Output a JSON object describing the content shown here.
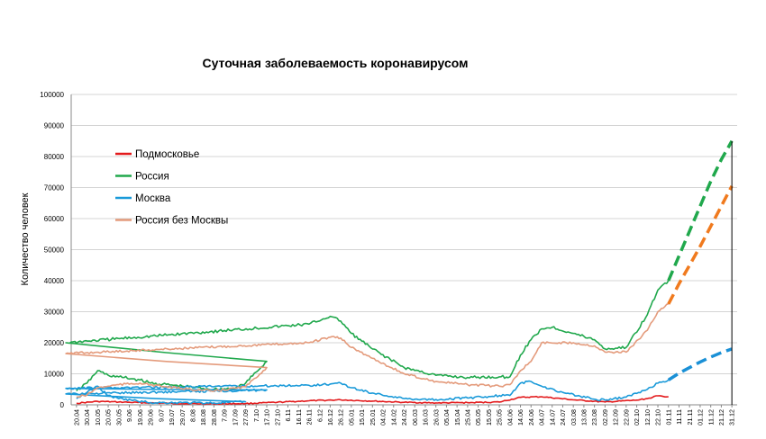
{
  "chart_data": {
    "type": "line",
    "title": "Суточная заболеваемость коронавирусом",
    "xlabel": "",
    "ylabel": "Количество человек",
    "ylim": [
      0,
      100000
    ],
    "yticks": [
      "0",
      "10000",
      "20000",
      "30000",
      "40000",
      "50000",
      "60000",
      "70000",
      "80000",
      "90000",
      "100000"
    ],
    "grid": true,
    "legend_position": "top-left",
    "categories": [
      "20.04",
      "30.04",
      "10.05",
      "20.05",
      "30.05",
      "9.06",
      "19.06",
      "29.06",
      "9.07",
      "19.07",
      "29.07",
      "8.08",
      "18.08",
      "28.08",
      "7.09",
      "17.09",
      "27.09",
      "7.10",
      "17.10",
      "27.10",
      "6.11",
      "16.11",
      "26.11",
      "6.12",
      "16.12",
      "26.12",
      "05.01",
      "15.01",
      "25.01",
      "04.02",
      "14.02",
      "24.02",
      "06.03",
      "16.03",
      "26.03",
      "05.04",
      "15.04",
      "25.04",
      "05.05",
      "15.05",
      "25.05",
      "04.06",
      "14.06",
      "24.06",
      "04.07",
      "14.07",
      "24.07",
      "03.08",
      "13.08",
      "23.08",
      "02.09",
      "12.09",
      "22.09",
      "02.10",
      "12.10",
      "22.10",
      "01.11",
      "11.11",
      "21.11",
      "01.12",
      "11.12",
      "21.12",
      "31.12"
    ],
    "series": [
      {
        "name": "Подмосковье",
        "color": "#e31a1c",
        "style": "solid",
        "x": [
          "20.04",
          "10.05",
          "30.05",
          "29.06",
          "29.07",
          "28.08",
          "27.09",
          "27.10",
          "26.11",
          "26.12",
          "25.01",
          "24.02",
          "26.03",
          "25.04",
          "25.05",
          "14.06",
          "04.07",
          "03.08",
          "02.09",
          "02.10",
          "12.10",
          "22.10",
          "01.11"
        ],
        "values": [
          500,
          1100,
          900,
          600,
          400,
          300,
          400,
          800,
          1300,
          1600,
          1200,
          800,
          600,
          700,
          900,
          2400,
          2600,
          1600,
          900,
          1500,
          2000,
          2900,
          2600
        ]
      },
      {
        "name": "Россия",
        "color": "#20a84c",
        "style": "solid",
        "x": [
          "20.04",
          "30.04",
          "10.05",
          "20.05",
          "30.05",
          "19.06",
          "29.06",
          "29.07",
          "28.08",
          "17.09",
          "27.09",
          "17.10",
          "06.11",
          "26.11",
          "16.12",
          "26.12",
          "05.01",
          "25.01",
          "24.02",
          "26.03",
          "25.04",
          "25.05",
          "04.06",
          "14.06",
          "24.06",
          "04.07",
          "14.07",
          "03.08",
          "23.08",
          "02.09",
          "22.09",
          "12.10",
          "22.10",
          "01.11"
        ],
        "values": [
          4500,
          7000,
          11000,
          9500,
          9000,
          8000,
          7000,
          6000,
          5000,
          5300,
          7000,
          14000,
          20000,
          26000,
          28500,
          27000,
          23000,
          18000,
          12000,
          9500,
          8800,
          9000,
          9000,
          16000,
          21000,
          24500,
          25000,
          23000,
          21000,
          18000,
          18500,
          29000,
          37000,
          40000
        ]
      },
      {
        "name": "Москва",
        "color": "#1a9ad9",
        "style": "solid",
        "x": [
          "20.04",
          "30.04",
          "10.05",
          "20.05",
          "30.05",
          "29.06",
          "29.07",
          "28.08",
          "27.09",
          "07.10",
          "17.10",
          "06.11",
          "26.11",
          "16.12",
          "26.12",
          "05.01",
          "25.01",
          "24.02",
          "26.03",
          "25.04",
          "25.05",
          "04.06",
          "14.06",
          "24.06",
          "04.07",
          "24.07",
          "23.08",
          "02.09",
          "22.09",
          "12.10",
          "22.10",
          "01.11"
        ],
        "values": [
          2000,
          4000,
          6000,
          3000,
          2000,
          700,
          700,
          600,
          1000,
          3500,
          4800,
          5300,
          6300,
          6700,
          7000,
          5500,
          3800,
          2000,
          1700,
          2200,
          3000,
          3000,
          7000,
          7500,
          6000,
          4000,
          1800,
          1500,
          2500,
          5000,
          7000,
          8000
        ]
      },
      {
        "name": "Россия без Москвы",
        "color": "#e49b7c",
        "style": "solid",
        "x": [
          "20.04",
          "30.04",
          "10.05",
          "20.05",
          "30.05",
          "19.06",
          "29.06",
          "29.07",
          "28.08",
          "27.09",
          "17.10",
          "06.11",
          "26.11",
          "16.12",
          "26.12",
          "05.01",
          "25.01",
          "24.02",
          "26.03",
          "25.04",
          "25.05",
          "04.06",
          "14.06",
          "24.06",
          "04.07",
          "03.08",
          "23.08",
          "02.09",
          "22.09",
          "12.10",
          "22.10",
          "01.11"
        ],
        "values": [
          2500,
          3200,
          5500,
          6000,
          6500,
          7000,
          6400,
          5200,
          4400,
          5800,
          12000,
          16500,
          20000,
          21800,
          21500,
          18500,
          15000,
          10000,
          7500,
          6500,
          6000,
          6500,
          11000,
          14000,
          20000,
          20000,
          19000,
          17000,
          17000,
          24000,
          30000,
          32500
        ]
      },
      {
        "name": "",
        "color": "#20a84c",
        "style": "dashed",
        "x": [
          "01.11",
          "11.11",
          "21.11",
          "01.12",
          "11.12",
          "21.12",
          "31.12"
        ],
        "values": [
          40000,
          48000,
          56000,
          64000,
          72000,
          79000,
          85000
        ]
      },
      {
        "name": "",
        "color": "#f07a1e",
        "style": "dashed",
        "x": [
          "01.11",
          "11.11",
          "21.11",
          "01.12",
          "11.12",
          "21.12",
          "31.12"
        ],
        "values": [
          32500,
          39000,
          45000,
          51000,
          57500,
          64000,
          70500
        ]
      },
      {
        "name": "",
        "color": "#1a90d6",
        "style": "dashed",
        "x": [
          "01.11",
          "11.11",
          "21.11",
          "01.12",
          "11.12",
          "21.12",
          "31.12"
        ],
        "values": [
          8000,
          10200,
          12000,
          13800,
          15400,
          16800,
          18000
        ]
      }
    ]
  }
}
